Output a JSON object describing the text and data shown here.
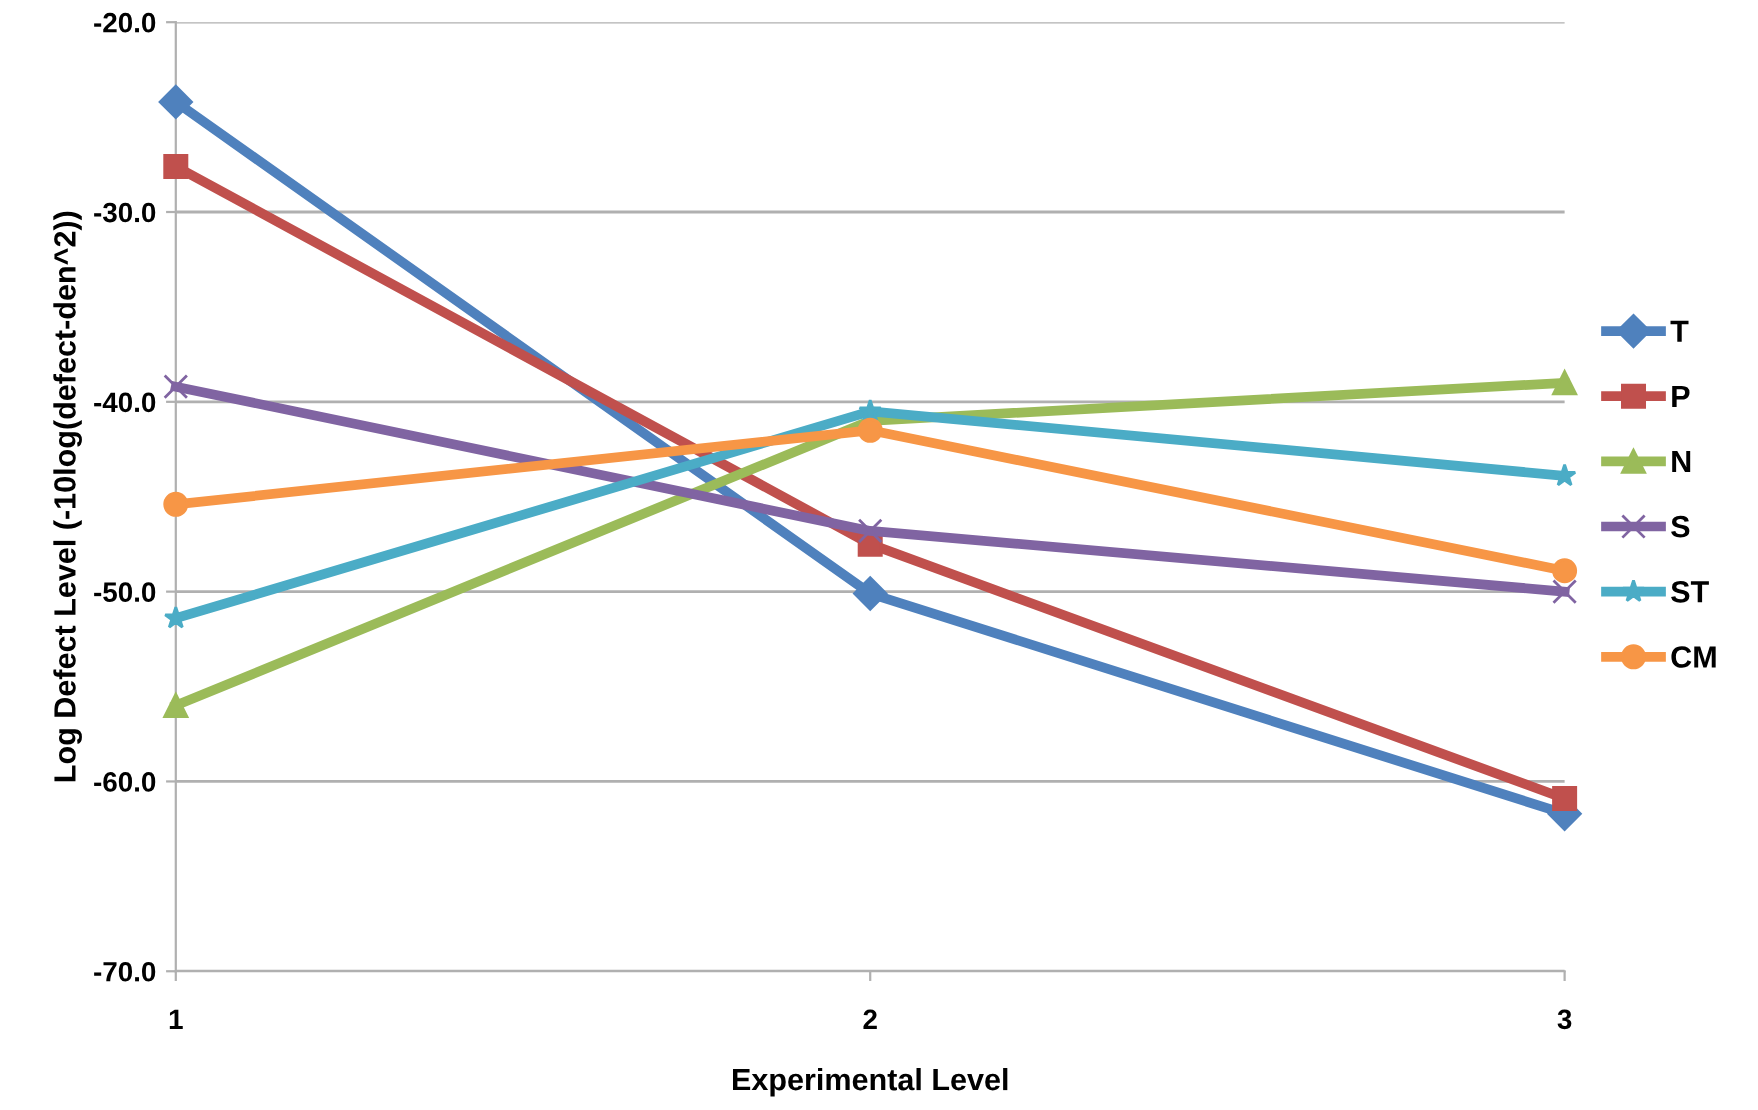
{
  "chart_data": {
    "type": "line",
    "xlabel": "Experimental Level",
    "ylabel": "Log Defect Level (-10log(defect-den^2))",
    "categories": [
      "1",
      "2",
      "3"
    ],
    "series": [
      {
        "name": "T",
        "color": "#4f81bd",
        "marker": "diamond",
        "values": [
          -24.2,
          -50.1,
          -61.7
        ]
      },
      {
        "name": "P",
        "color": "#c0504d",
        "marker": "square",
        "values": [
          -27.6,
          -47.5,
          -60.9
        ]
      },
      {
        "name": "N",
        "color": "#9bbb59",
        "marker": "triangle",
        "values": [
          -56.0,
          -41.0,
          -39.0
        ]
      },
      {
        "name": "S",
        "color": "#8064a2",
        "marker": "cross",
        "values": [
          -39.2,
          -46.8,
          -50.0
        ]
      },
      {
        "name": "ST",
        "color": "#4bacc6",
        "marker": "star",
        "values": [
          -51.4,
          -40.5,
          -43.9
        ]
      },
      {
        "name": "CM",
        "color": "#f79646",
        "marker": "circle",
        "values": [
          -45.4,
          -41.5,
          -48.9
        ]
      }
    ],
    "ylim": [
      -70,
      -20
    ],
    "yticks": [
      {
        "value": -70,
        "label": "-70.0"
      },
      {
        "value": -60,
        "label": "-60.0"
      },
      {
        "value": -50,
        "label": "-50.0"
      },
      {
        "value": -40,
        "label": "-40.0"
      },
      {
        "value": -30,
        "label": "-30.0"
      },
      {
        "value": -20,
        "label": "-20.0"
      }
    ],
    "grid": "y",
    "legend": "right",
    "line_style": "solid"
  }
}
